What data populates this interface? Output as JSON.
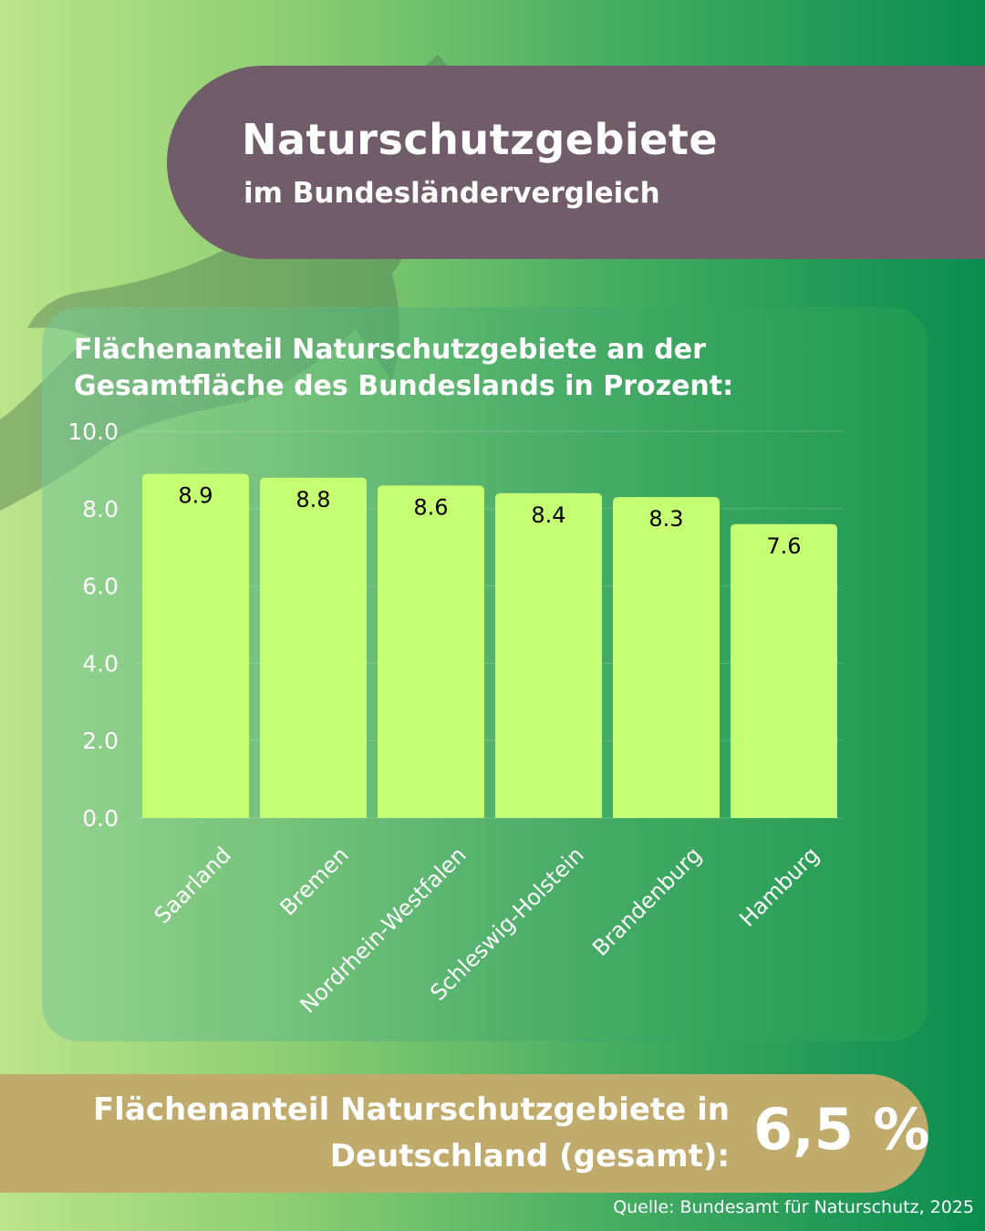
{
  "header": {
    "title": "Naturschutzgebiete",
    "subtitle": "im Bundesländervergleich"
  },
  "chart_data": {
    "type": "bar",
    "title": "Flächenanteil Naturschutzgebiete an der Gesamtfläche des Bundeslands in Prozent:",
    "categories": [
      "Saarland",
      "Bremen",
      "Nordrhein-Westfalen",
      "Schleswig-Holstein",
      "Brandenburg",
      "Hamburg"
    ],
    "values": [
      8.9,
      8.8,
      8.6,
      8.4,
      8.3,
      7.6
    ],
    "data_labels": [
      "8.9",
      "8.8",
      "8.6",
      "8.4",
      "8.3",
      "7.6"
    ],
    "ylim": [
      0,
      10
    ],
    "yticks": [
      "0.0",
      "2.0",
      "4.0",
      "6.0",
      "8.0",
      "10.0"
    ],
    "grid": true,
    "bar_color": "#c5fe72",
    "label_color": "#000000"
  },
  "footer": {
    "label_line1": "Flächenanteil Naturschutzgebiete in",
    "label_line2": "Deutschland (gesamt):",
    "value": "6,5 %"
  },
  "source": "Quelle: Bundesamt für Naturschutz, 2025",
  "colors": {
    "title_pill": "#715d69",
    "footer_pill": "#c0aa6c"
  }
}
